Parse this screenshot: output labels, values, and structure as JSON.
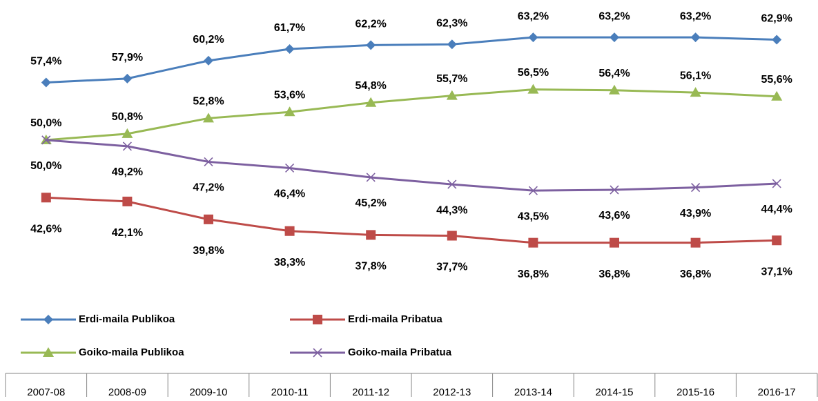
{
  "chart_data": {
    "type": "line",
    "categories": [
      "2007-08",
      "2008-09",
      "2009-10",
      "2010-11",
      "2011-12",
      "2012-13",
      "2013-14",
      "2014-15",
      "2015-16",
      "2016-17"
    ],
    "series": [
      {
        "name": "Erdi-maila Publikoa",
        "color": "#4a7ebb",
        "marker": "diamond",
        "values": [
          57.4,
          57.9,
          60.2,
          61.7,
          62.2,
          62.3,
          63.2,
          63.2,
          63.2,
          62.9
        ],
        "value_labels": [
          "57,4%",
          "57,9%",
          "60,2%",
          "61,7%",
          "62,2%",
          "62,3%",
          "63,2%",
          "63,2%",
          "63,2%",
          "62,9%"
        ]
      },
      {
        "name": "Erdi-maila Pribatua",
        "color": "#be4b48",
        "marker": "square",
        "values": [
          42.6,
          42.1,
          39.8,
          38.3,
          37.8,
          37.7,
          36.8,
          36.8,
          36.8,
          37.1
        ],
        "value_labels": [
          "42,6%",
          "42,1%",
          "39,8%",
          "38,3%",
          "37,8%",
          "37,7%",
          "36,8%",
          "36,8%",
          "36,8%",
          "37,1%"
        ]
      },
      {
        "name": "Goiko-maila Publikoa",
        "color": "#98b954",
        "marker": "triangle",
        "values": [
          50.0,
          50.8,
          52.8,
          53.6,
          54.8,
          55.7,
          56.5,
          56.4,
          56.1,
          55.6
        ],
        "value_labels": [
          "50,0%",
          "50,8%",
          "52,8%",
          "53,6%",
          "54,8%",
          "55,7%",
          "56,5%",
          "56,4%",
          "56,1%",
          "55,6%"
        ]
      },
      {
        "name": "Goiko-maila Pribatua",
        "color": "#7d60a0",
        "marker": "x",
        "values": [
          50.0,
          49.2,
          47.2,
          46.4,
          45.2,
          44.3,
          43.5,
          43.6,
          43.9,
          44.4
        ],
        "value_labels": [
          "50,0%",
          "49,2%",
          "47,2%",
          "46,4%",
          "45,2%",
          "44,3%",
          "43,5%",
          "43,6%",
          "43,9%",
          "44,4%"
        ]
      }
    ],
    "ylim": [
      20,
      68
    ],
    "legend": "bottom"
  }
}
